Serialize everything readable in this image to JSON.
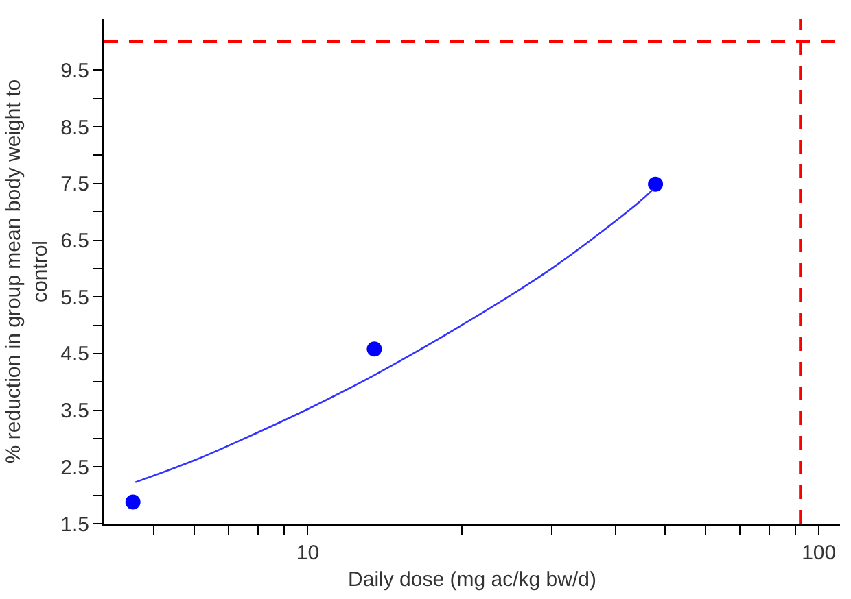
{
  "chart_data": {
    "type": "scatter",
    "xlabel": "Daily dose (mg ac/kg bw/d)",
    "ylabel": "% reduction in group mean body weight to control",
    "log": "x",
    "xlim": [
      4,
      110
    ],
    "ylim": [
      1.5,
      10.4
    ],
    "xticks": [
      {
        "value": 5,
        "label": null
      },
      {
        "value": 6,
        "label": null
      },
      {
        "value": 7,
        "label": null
      },
      {
        "value": 8,
        "label": null
      },
      {
        "value": 9,
        "label": null
      },
      10,
      {
        "value": 20,
        "label": null
      },
      {
        "value": 30,
        "label": null
      },
      {
        "value": 40,
        "label": null
      },
      {
        "value": 50,
        "label": null
      },
      {
        "value": 60,
        "label": null
      },
      {
        "value": 70,
        "label": null
      },
      {
        "value": 80,
        "label": null
      },
      {
        "value": 90,
        "label": null
      },
      100
    ],
    "yticks": [
      1.5,
      {
        "value": 2,
        "label": null
      },
      2.5,
      {
        "value": 3,
        "label": null
      },
      3.5,
      {
        "value": 4,
        "label": null
      },
      4.5,
      {
        "value": 5,
        "label": null
      },
      5.5,
      {
        "value": 6,
        "label": null
      },
      6.5,
      {
        "value": 7,
        "label": null
      },
      7.5,
      {
        "value": 8,
        "label": null
      },
      8.5,
      {
        "value": 9,
        "label": null
      },
      9.5
    ],
    "grid": false,
    "series": [
      {
        "color": "#0000ff",
        "marker": "circle",
        "x": [
          4.55,
          13.5,
          47.9
        ],
        "values": [
          1.88,
          4.58,
          7.49
        ]
      },
      {
        "type": "line",
        "color": "#3333ff",
        "marker": "none",
        "line_style": "solid",
        "x": [
          4.6,
          6.05,
          7.64,
          10,
          13.5,
          20,
          30,
          44.2,
          47.3
        ],
        "values": [
          2.23,
          2.63,
          3.03,
          3.52,
          4.12,
          5.0,
          6.0,
          7.15,
          7.39
        ]
      }
    ],
    "ref_lines": [
      {
        "axis": "x",
        "value": 92,
        "color": "#ff0000",
        "line_style": "dashed"
      },
      {
        "axis": "y",
        "value": 10,
        "color": "#ff0000",
        "line_style": "dashed"
      }
    ]
  }
}
